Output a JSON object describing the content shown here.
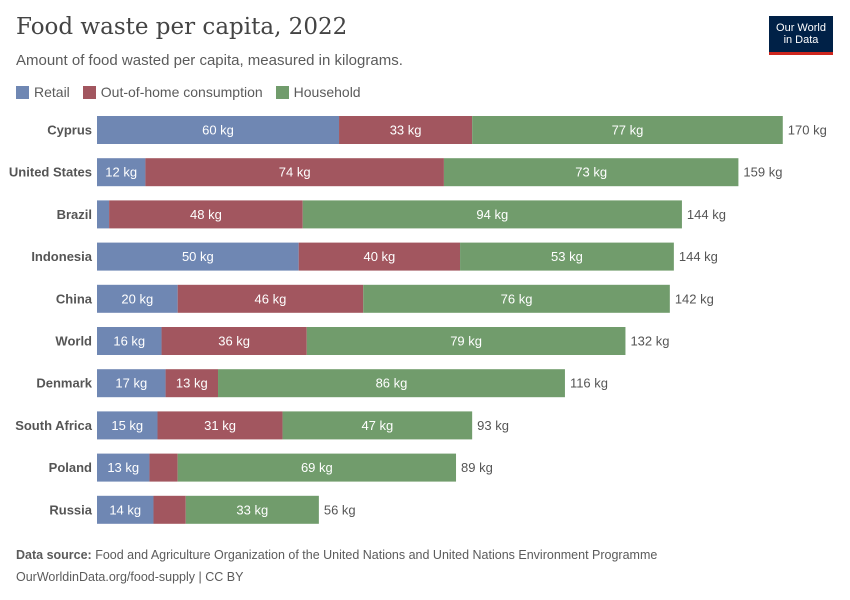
{
  "header": {
    "title": "Food waste per capita, 2022",
    "subtitle": "Amount of food wasted per capita, measured in kilograms.",
    "logo_line1": "Our World",
    "logo_line2": "in Data"
  },
  "footer": {
    "source_label": "Data source:",
    "source_text": "Food and Agriculture Organization of the United Nations and United Nations Environment Programme",
    "url_text": "OurWorldinData.org/food-supply | CC BY"
  },
  "chart_data": {
    "type": "bar",
    "orientation": "horizontal",
    "stacked": true,
    "unit": "kg",
    "categories": [
      "Cyprus",
      "United States",
      "Brazil",
      "Indonesia",
      "China",
      "World",
      "Denmark",
      "South Africa",
      "Poland",
      "Russia"
    ],
    "series": [
      {
        "name": "Retail",
        "color": "#6f87b3",
        "values": [
          60,
          12,
          3,
          50,
          20,
          16,
          17,
          15,
          13,
          14
        ]
      },
      {
        "name": "Out-of-home consumption",
        "color": "#a2565f",
        "values": [
          33,
          74,
          48,
          40,
          46,
          36,
          13,
          31,
          7,
          8
        ]
      },
      {
        "name": "Household",
        "color": "#719c6c",
        "values": [
          77,
          73,
          94,
          53,
          76,
          79,
          86,
          47,
          69,
          33
        ]
      }
    ],
    "totals": [
      170,
      159,
      144,
      144,
      142,
      132,
      116,
      93,
      89,
      56
    ],
    "segment_labels": [
      [
        "60 kg",
        "33 kg",
        "77 kg"
      ],
      [
        "12 kg",
        "74 kg",
        "73 kg"
      ],
      [
        "",
        "48 kg",
        "94 kg"
      ],
      [
        "50 kg",
        "40 kg",
        "53 kg"
      ],
      [
        "20 kg",
        "46 kg",
        "76 kg"
      ],
      [
        "16 kg",
        "36 kg",
        "79 kg"
      ],
      [
        "17 kg",
        "13 kg",
        "86 kg"
      ],
      [
        "15 kg",
        "31 kg",
        "47 kg"
      ],
      [
        "13 kg",
        "",
        "69 kg"
      ],
      [
        "14 kg",
        "",
        "33 kg"
      ]
    ],
    "total_labels": [
      "170 kg",
      "159 kg",
      "144 kg",
      "144 kg",
      "142 kg",
      "132 kg",
      "116 kg",
      "93 kg",
      "89 kg",
      "56 kg"
    ],
    "legend_position": "top-left",
    "grid": false
  }
}
